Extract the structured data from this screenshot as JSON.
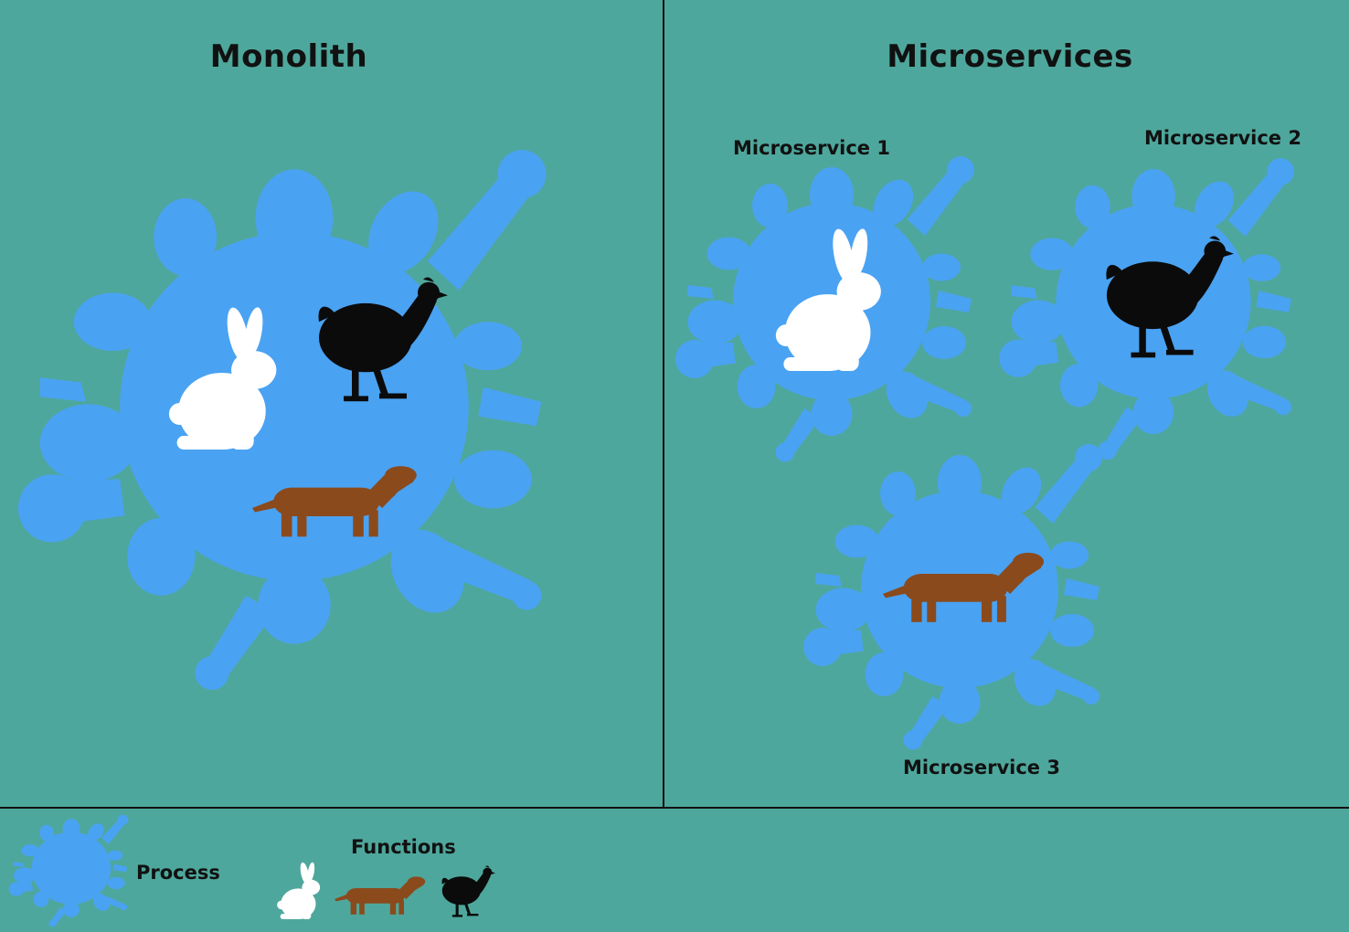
{
  "colors": {
    "background": "#4ea79c",
    "process_blob": "#4aa2f2",
    "divider": "#111111",
    "rabbit": "#ffffff",
    "chicken": "#0b0b0b",
    "dog": "#8b4a1c"
  },
  "monolith": {
    "title": "Monolith",
    "functions": [
      "rabbit-icon",
      "chicken-icon",
      "dog-icon"
    ]
  },
  "microservices": {
    "title": "Microservices",
    "services": [
      {
        "label": "Microservice 1",
        "function": "rabbit-icon"
      },
      {
        "label": "Microservice 2",
        "function": "chicken-icon"
      },
      {
        "label": "Microservice 3",
        "function": "dog-icon"
      }
    ]
  },
  "legend": {
    "process_label": "Process",
    "functions_label": "Functions"
  }
}
